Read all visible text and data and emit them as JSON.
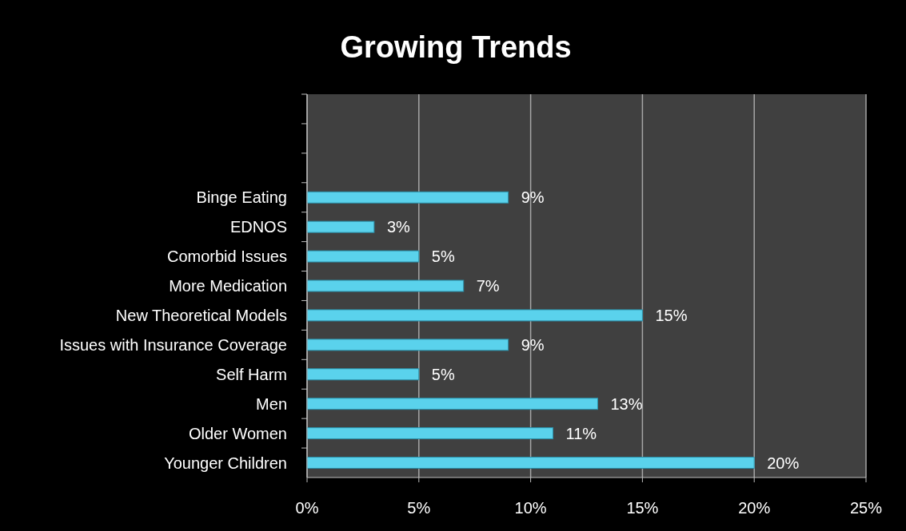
{
  "chart_data": {
    "type": "bar",
    "orientation": "horizontal",
    "title": "Growing Trends",
    "categories": [
      null,
      null,
      null,
      "Binge Eating",
      "EDNOS",
      "Comorbid Issues",
      "More Medication",
      "New Theoretical Models",
      "Issues with Insurance Coverage",
      "Self Harm",
      "Men",
      "Older Women",
      "Younger Children"
    ],
    "values": [
      null,
      null,
      null,
      9,
      3,
      5,
      7,
      15,
      9,
      5,
      13,
      11,
      20
    ],
    "value_labels": [
      null,
      null,
      null,
      "9%",
      "3%",
      "5%",
      "7%",
      "15%",
      "9%",
      "5%",
      "13%",
      "11%",
      "20%"
    ],
    "color": "#5ad2ec",
    "xlim": [
      0,
      25
    ],
    "xticks": [
      {
        "value": 0,
        "label": "0%"
      },
      {
        "value": 5,
        "label": "5%"
      },
      {
        "value": 10,
        "label": "10%"
      },
      {
        "value": 15,
        "label": "15%"
      },
      {
        "value": 20,
        "label": "20%"
      },
      {
        "value": 25,
        "label": "25%"
      }
    ],
    "grid": "x"
  }
}
